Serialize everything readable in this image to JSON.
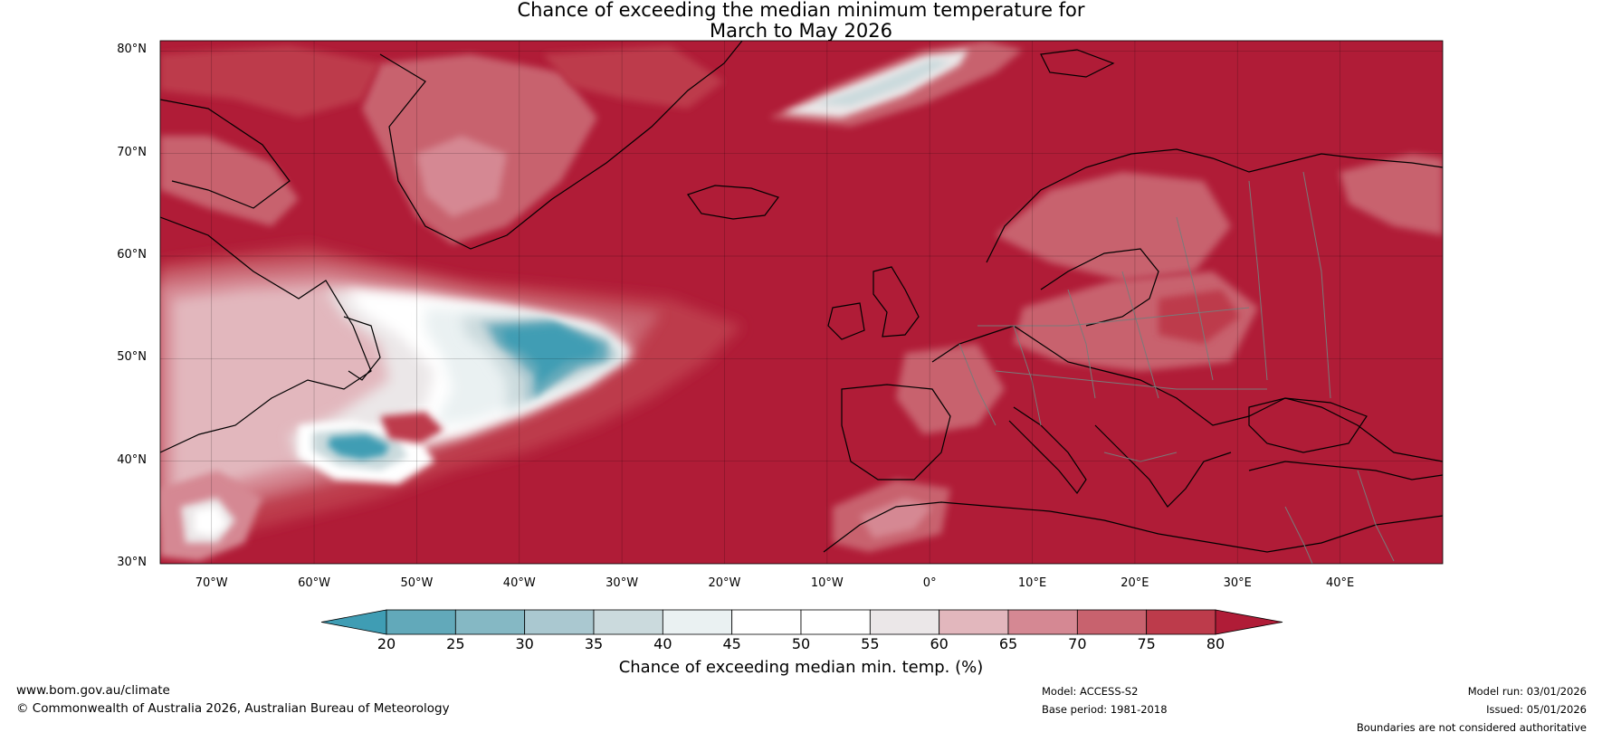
{
  "title": {
    "line1": "Chance of exceeding the median minimum temperature for",
    "line2": "March to May 2026"
  },
  "map": {
    "lat_labels": [
      "80°N",
      "70°N",
      "60°N",
      "50°N",
      "40°N",
      "30°N"
    ],
    "lon_labels": [
      "70°W",
      "60°W",
      "50°W",
      "40°W",
      "30°W",
      "20°W",
      "10°W",
      "0°",
      "10°E",
      "20°E",
      "30°E",
      "40°E"
    ],
    "lat_values": [
      80,
      70,
      60,
      50,
      40,
      30
    ],
    "lon_values": [
      -70,
      -60,
      -50,
      -40,
      -30,
      -20,
      -10,
      0,
      10,
      20,
      30,
      40
    ],
    "extent": {
      "lon_min": -75,
      "lon_max": 50,
      "lat_min": 30,
      "lat_max": 81
    }
  },
  "colorbar": {
    "ticks": [
      "20",
      "25",
      "30",
      "35",
      "40",
      "45",
      "50",
      "55",
      "60",
      "65",
      "70",
      "75",
      "80"
    ],
    "colors": [
      "#3f9db4",
      "#62a9ba",
      "#85b8c4",
      "#aac8d0",
      "#cbdadd",
      "#eaf1f2",
      "#ffffff",
      "#ffffff",
      "#ebe7e8",
      "#e2b7bd",
      "#d58893",
      "#c8626e",
      "#bd3b4b",
      "#b01c37"
    ],
    "label": "Chance of exceeding median min. temp. (%)"
  },
  "footer": {
    "website": "www.bom.gov.au/climate",
    "copyright": "© Commonwealth of Australia 2026, Australian Bureau of Meteorology",
    "model": "Model: ACCESS-S2",
    "base_period": "Base period: 1981-2018",
    "model_run": "Model run: 03/01/2026",
    "issued": "Issued: 05/01/2026",
    "disclaimer": "Boundaries are not considered authoritative"
  }
}
